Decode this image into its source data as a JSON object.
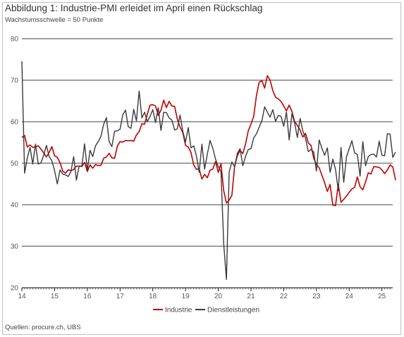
{
  "title": "Abbildung 1: Industrie-PMI erleidet im April einen Rückschlag",
  "subtitle": "Wachstumsschwelle = 50 Punkte",
  "source": "Quellen: procure.ch, UBS",
  "colors": {
    "industrie": "#c00000",
    "dienstleistungen": "#3a3a3a",
    "grid": "#000000"
  },
  "chart_data": {
    "type": "line",
    "title": "Abbildung 1: Industrie-PMI erleidet im April einen Rückschlag",
    "subtitle": "Wachstumsschwelle = 50 Punkte",
    "xlabel": "",
    "ylabel": "",
    "xlim": [
      2014,
      2025.33
    ],
    "ylim": [
      20,
      80
    ],
    "yticks": [
      20,
      30,
      40,
      50,
      60,
      70,
      80
    ],
    "xticks": [
      {
        "value": 2014,
        "label": "14"
      },
      {
        "value": 2015,
        "label": "15"
      },
      {
        "value": 2016,
        "label": "16"
      },
      {
        "value": 2017,
        "label": "17"
      },
      {
        "value": 2018,
        "label": "18"
      },
      {
        "value": 2019,
        "label": "19"
      },
      {
        "value": 2020,
        "label": "20"
      },
      {
        "value": 2021,
        "label": "21"
      },
      {
        "value": 2022,
        "label": "22"
      },
      {
        "value": 2023,
        "label": "23"
      },
      {
        "value": 2024,
        "label": "24"
      },
      {
        "value": 2025,
        "label": "25"
      }
    ],
    "grid": "horizontal",
    "legend": "bottom-center",
    "x_start": 2014.0,
    "x_step": 0.0833333,
    "series": [
      {
        "name": "Industrie",
        "color": "#c00000",
        "values": [
          56.2,
          56.7,
          53.9,
          54.4,
          53.8,
          54.0,
          54.2,
          53.4,
          52.5,
          51.5,
          52.6,
          54.0,
          51.8,
          51.4,
          50.1,
          48.1,
          47.6,
          48.4,
          48.2,
          48.5,
          49.3,
          49.3,
          49.2,
          50.2,
          48.0,
          49.6,
          48.8,
          49.7,
          49.4,
          49.5,
          51.2,
          51.5,
          52.4,
          51.3,
          51.2,
          54.1,
          55.2,
          55.1,
          55.5,
          55.4,
          55.5,
          55.3,
          56.8,
          57.6,
          59.5,
          59.4,
          61.8,
          64.0,
          64.1,
          63.8,
          61.5,
          62.8,
          65.2,
          63.4,
          64.9,
          63.8,
          63.7,
          60.6,
          58.7,
          57.4,
          54.3,
          53.9,
          52.6,
          49.6,
          48.5,
          48.7,
          46.2,
          47.3,
          46.5,
          48.3,
          48.6,
          50.4,
          47.8,
          49.9,
          43.4,
          40.4,
          41.1,
          42.3,
          49.2,
          51.8,
          53.1,
          52.3,
          54.6,
          57.8,
          59.4,
          61.3,
          66.3,
          69.5,
          69.9,
          68.1,
          71.1,
          70.0,
          67.5,
          65.9,
          65.5,
          64.9,
          63.8,
          62.6,
          64.0,
          62.5,
          60.0,
          59.1,
          58.0,
          56.3,
          57.2,
          54.9,
          54.3,
          51.2,
          49.7,
          48.9,
          47.1,
          45.3,
          43.2,
          44.9,
          39.9,
          39.8,
          44.9,
          40.6,
          41.3,
          42.1,
          43.0,
          43.8,
          44.2,
          46.7,
          44.3,
          43.6,
          45.5,
          47.7,
          47.4,
          49.2,
          49.1,
          49.0,
          48.4,
          47.5,
          48.4,
          49.6,
          49.1,
          45.9
        ]
      },
      {
        "name": "Dienstleistungen",
        "color": "#3a3a3a",
        "values": [
          74.6,
          47.6,
          51.3,
          53.8,
          49.8,
          54.6,
          49.8,
          50.1,
          51.9,
          54.3,
          51.6,
          50.6,
          48.2,
          45.0,
          48.4,
          47.4,
          47.2,
          46.8,
          48.0,
          51.6,
          45.9,
          49.3,
          49.3,
          54.7,
          48.3,
          53.1,
          51.6,
          54.2,
          55.2,
          56.5,
          59.4,
          61.0,
          55.2,
          54.0,
          57.7,
          57.8,
          58.2,
          61.7,
          62.8,
          58.8,
          58.4,
          63.0,
          60.2,
          67.4,
          60.9,
          62.3,
          60.0,
          61.3,
          62.9,
          59.8,
          63.4,
          57.9,
          62.3,
          62.2,
          60.9,
          60.4,
          58.0,
          58.3,
          61.6,
          57.7,
          55.1,
          58.6,
          53.7,
          54.2,
          51.8,
          47.8,
          54.6,
          48.6,
          52.2,
          55.5,
          53.6,
          51.0,
          49.2,
          48.0,
          30.6,
          22.0,
          47.9,
          50.3,
          49.1,
          52.4,
          53.5,
          49.4,
          51.6,
          53.3,
          53.5,
          56.1,
          57.1,
          58.7,
          60.2,
          63.6,
          62.3,
          61.1,
          62.9,
          60.1,
          61.5,
          61.3,
          58.9,
          62.3,
          55.6,
          61.9,
          59.7,
          56.2,
          60.8,
          57.8,
          56.0,
          52.8,
          53.3,
          52.7,
          48.1,
          55.6,
          53.6,
          51.9,
          53.7,
          47.8,
          51.0,
          48.5,
          43.4,
          53.8,
          45.4,
          51.5,
          53.5,
          55.4,
          52.5,
          52.1,
          46.9,
          55.2,
          49.4,
          51.6,
          52.1,
          52.2,
          51.5,
          55.3,
          51.9,
          51.8,
          57.1,
          57.0,
          51.4,
          52.7
        ]
      }
    ]
  }
}
